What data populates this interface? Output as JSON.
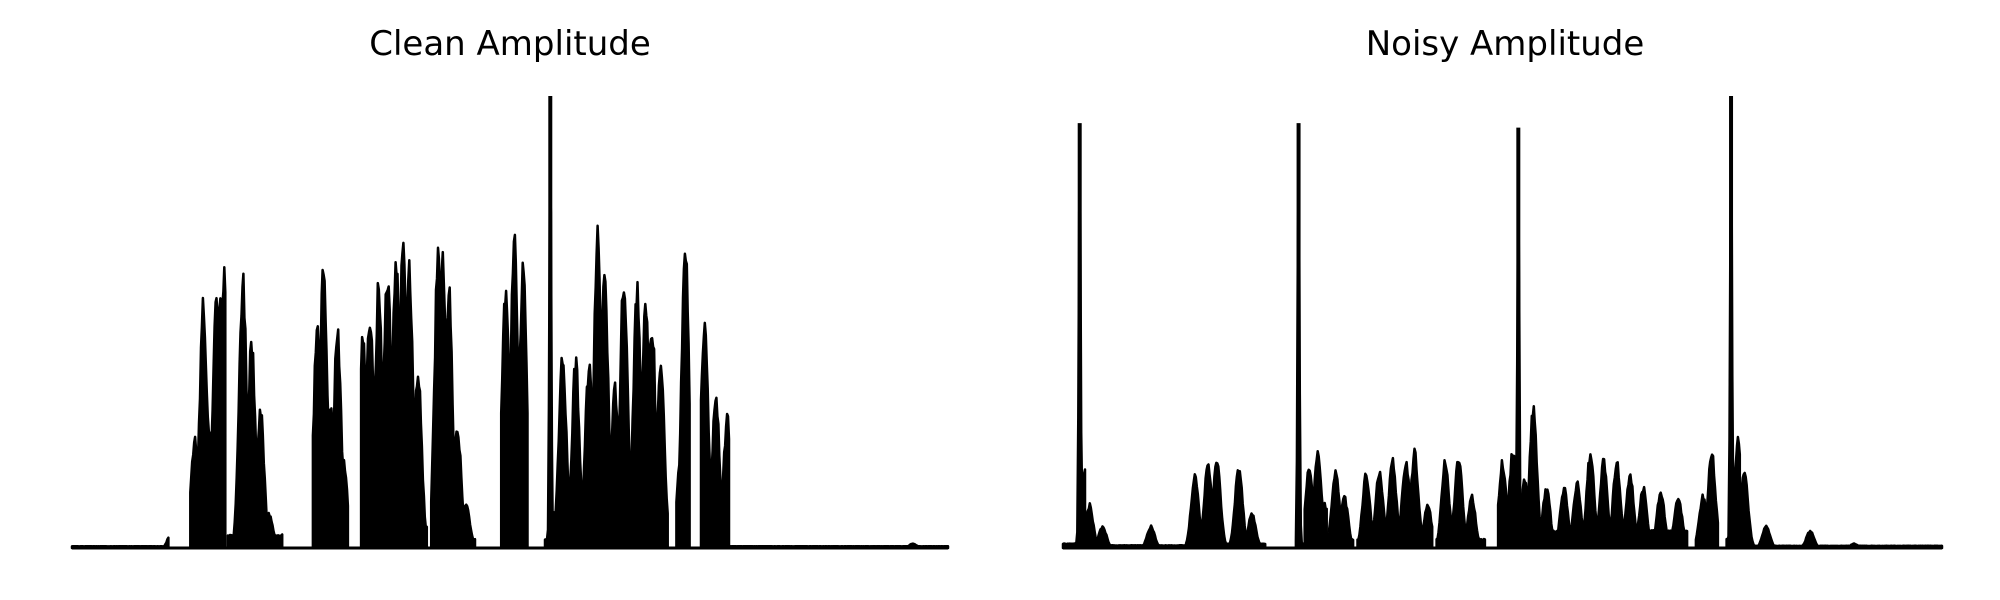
{
  "chart_data": [
    {
      "type": "area",
      "title": "Clean Amplitude",
      "xlabel": "",
      "ylabel": "",
      "grid": false,
      "ylim": [
        0,
        1.0
      ],
      "color": "#000000",
      "segments": [
        {
          "start": 0.0,
          "end": 0.11,
          "base": 0.004,
          "peaks": [
            [
              0.114,
              0.04
            ]
          ]
        },
        {
          "start": 0.135,
          "end": 0.175,
          "base": 0.02,
          "peaks": [
            [
              0.14,
              0.25
            ],
            [
              0.15,
              0.56
            ],
            [
              0.155,
              0.3
            ],
            [
              0.165,
              0.58
            ],
            [
              0.17,
              0.62
            ],
            [
              0.173,
              0.64
            ]
          ]
        },
        {
          "start": 0.178,
          "end": 0.24,
          "base": 0.03,
          "peaks": [
            [
              0.195,
              0.62
            ],
            [
              0.205,
              0.48
            ],
            [
              0.215,
              0.32
            ],
            [
              0.225,
              0.08
            ]
          ]
        },
        {
          "start": 0.275,
          "end": 0.315,
          "base": 0.02,
          "peaks": [
            [
              0.28,
              0.5
            ],
            [
              0.287,
              0.63
            ],
            [
              0.295,
              0.32
            ],
            [
              0.303,
              0.5
            ],
            [
              0.31,
              0.2
            ]
          ]
        },
        {
          "start": 0.33,
          "end": 0.375,
          "base": 0.05,
          "peaks": [
            [
              0.332,
              0.5
            ],
            [
              0.34,
              0.54
            ],
            [
              0.35,
              0.6
            ],
            [
              0.36,
              0.65
            ],
            [
              0.37,
              0.68
            ]
          ]
        },
        {
          "start": 0.375,
          "end": 0.405,
          "base": 0.05,
          "peaks": [
            [
              0.378,
              0.7
            ],
            [
              0.385,
              0.65
            ],
            [
              0.395,
              0.4
            ]
          ]
        },
        {
          "start": 0.41,
          "end": 0.46,
          "base": 0.02,
          "peaks": [
            [
              0.418,
              0.68
            ],
            [
              0.423,
              0.66
            ],
            [
              0.43,
              0.6
            ],
            [
              0.44,
              0.28
            ],
            [
              0.45,
              0.1
            ]
          ]
        },
        {
          "start": 0.49,
          "end": 0.52,
          "base": 0.02,
          "peaks": [
            [
              0.495,
              0.6
            ],
            [
              0.505,
              0.72
            ],
            [
              0.51,
              0.22
            ],
            [
              0.515,
              0.65
            ]
          ]
        },
        {
          "start": 0.54,
          "end": 0.55,
          "base": 0.02,
          "peaks": [
            [
              0.546,
              1.0
            ]
          ]
        },
        {
          "start": 0.55,
          "end": 0.68,
          "base": 0.08,
          "peaks": [
            [
              0.56,
              0.45
            ],
            [
              0.575,
              0.43
            ],
            [
              0.59,
              0.42
            ],
            [
              0.6,
              0.72
            ],
            [
              0.608,
              0.64
            ],
            [
              0.62,
              0.37
            ],
            [
              0.63,
              0.64
            ],
            [
              0.645,
              0.6
            ],
            [
              0.655,
              0.57
            ],
            [
              0.662,
              0.52
            ],
            [
              0.672,
              0.42
            ]
          ]
        },
        {
          "start": 0.69,
          "end": 0.705,
          "base": 0.02,
          "peaks": [
            [
              0.695,
              0.22
            ],
            [
              0.7,
              0.71
            ]
          ]
        },
        {
          "start": 0.718,
          "end": 0.75,
          "base": 0.02,
          "peaks": [
            [
              0.722,
              0.53
            ],
            [
              0.735,
              0.35
            ],
            [
              0.748,
              0.3
            ]
          ]
        },
        {
          "start": 0.75,
          "end": 1.0,
          "base": 0.004,
          "peaks": [
            [
              0.96,
              0.01
            ]
          ]
        }
      ]
    },
    {
      "type": "area",
      "title": "Noisy Amplitude",
      "xlabel": "",
      "ylabel": "",
      "grid": false,
      "ylim": [
        0,
        1.0
      ],
      "color": "#000000",
      "segments": [
        {
          "start": 0.0,
          "end": 0.025,
          "base": 0.01,
          "peaks": [
            [
              0.019,
              0.94
            ],
            [
              0.025,
              0.18
            ]
          ]
        },
        {
          "start": 0.025,
          "end": 0.14,
          "base": 0.006,
          "peaks": [
            [
              0.03,
              0.1
            ],
            [
              0.045,
              0.05
            ],
            [
              0.1,
              0.05
            ]
          ]
        },
        {
          "start": 0.14,
          "end": 0.23,
          "base": 0.01,
          "peaks": [
            [
              0.15,
              0.17
            ],
            [
              0.165,
              0.2
            ],
            [
              0.175,
              0.2
            ],
            [
              0.2,
              0.19
            ],
            [
              0.215,
              0.08
            ]
          ]
        },
        {
          "start": 0.265,
          "end": 0.275,
          "base": 0.01,
          "peaks": [
            [
              0.268,
              0.94
            ]
          ]
        },
        {
          "start": 0.275,
          "end": 0.3,
          "base": 0.02,
          "peaks": [
            [
              0.28,
              0.18
            ],
            [
              0.29,
              0.22
            ],
            [
              0.298,
              0.1
            ]
          ]
        },
        {
          "start": 0.3,
          "end": 0.33,
          "base": 0.02,
          "peaks": [
            [
              0.31,
              0.18
            ],
            [
              0.32,
              0.12
            ]
          ]
        },
        {
          "start": 0.335,
          "end": 0.42,
          "base": 0.02,
          "peaks": [
            [
              0.345,
              0.17
            ],
            [
              0.36,
              0.18
            ],
            [
              0.375,
              0.2
            ],
            [
              0.39,
              0.2
            ],
            [
              0.4,
              0.22
            ],
            [
              0.415,
              0.1
            ]
          ]
        },
        {
          "start": 0.425,
          "end": 0.48,
          "base": 0.02,
          "peaks": [
            [
              0.435,
              0.2
            ],
            [
              0.45,
              0.21
            ],
            [
              0.465,
              0.12
            ]
          ]
        },
        {
          "start": 0.495,
          "end": 0.52,
          "base": 0.02,
          "peaks": [
            [
              0.5,
              0.2
            ],
            [
              0.512,
              0.23
            ],
            [
              0.518,
              0.93
            ]
          ]
        },
        {
          "start": 0.52,
          "end": 0.71,
          "base": 0.04,
          "peaks": [
            [
              0.525,
              0.16
            ],
            [
              0.535,
              0.32
            ],
            [
              0.55,
              0.14
            ],
            [
              0.57,
              0.14
            ],
            [
              0.585,
              0.15
            ],
            [
              0.6,
              0.22
            ],
            [
              0.615,
              0.2
            ],
            [
              0.63,
              0.2
            ],
            [
              0.645,
              0.17
            ],
            [
              0.66,
              0.14
            ],
            [
              0.68,
              0.13
            ],
            [
              0.7,
              0.12
            ]
          ]
        },
        {
          "start": 0.72,
          "end": 0.745,
          "base": 0.02,
          "peaks": [
            [
              0.728,
              0.12
            ],
            [
              0.738,
              0.22
            ]
          ]
        },
        {
          "start": 0.755,
          "end": 0.77,
          "base": 0.02,
          "peaks": [
            [
              0.76,
              1.0
            ],
            [
              0.768,
              0.25
            ]
          ]
        },
        {
          "start": 0.77,
          "end": 1.0,
          "base": 0.005,
          "peaks": [
            [
              0.775,
              0.18
            ],
            [
              0.8,
              0.05
            ],
            [
              0.85,
              0.04
            ],
            [
              0.9,
              0.01
            ]
          ]
        }
      ]
    }
  ]
}
